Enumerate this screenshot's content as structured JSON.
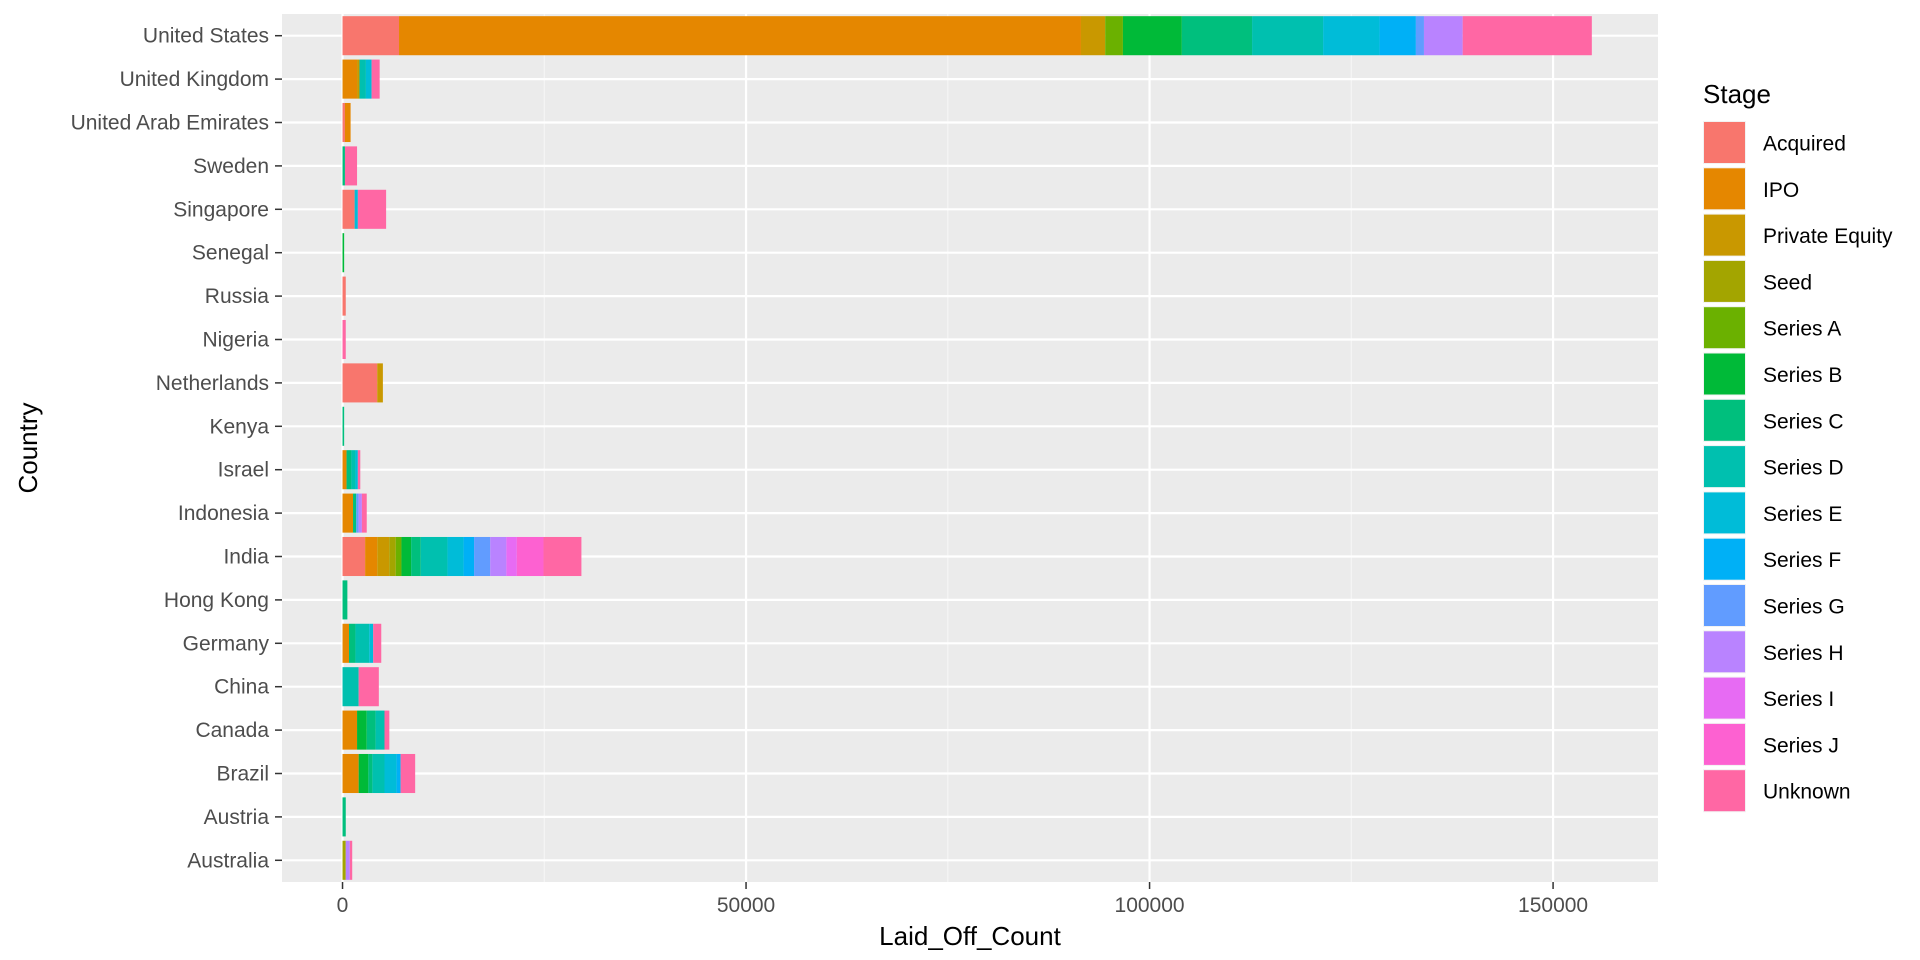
{
  "chart_data": {
    "type": "bar",
    "orientation": "horizontal",
    "stacked": true,
    "title": "",
    "xlabel": "Laid_Off_Count",
    "ylabel": "Country",
    "xlim": [
      -7500,
      163000
    ],
    "x_ticks": [
      0,
      50000,
      100000,
      150000
    ],
    "x_tick_labels": [
      "0",
      "50000",
      "100000",
      "150000"
    ],
    "grid": true,
    "legend_position": "right",
    "legend_title": "Stage",
    "categories": [
      "United States",
      "United Kingdom",
      "United Arab Emirates",
      "Sweden",
      "Singapore",
      "Senegal",
      "Russia",
      "Nigeria",
      "Netherlands",
      "Kenya",
      "Israel",
      "Indonesia",
      "India",
      "Hong Kong",
      "Germany",
      "China",
      "Canada",
      "Brazil",
      "Austria",
      "Australia"
    ],
    "series": [
      {
        "name": "Acquired",
        "color": "#F8766D",
        "values": [
          7000,
          0,
          300,
          0,
          1500,
          0,
          400,
          0,
          4300,
          0,
          0,
          0,
          2800,
          0,
          0,
          0,
          0,
          0,
          0,
          0
        ]
      },
      {
        "name": "IPO",
        "color": "#E58700",
        "values": [
          84500,
          1800,
          700,
          0,
          0,
          0,
          0,
          0,
          0,
          0,
          500,
          1300,
          1500,
          0,
          800,
          0,
          1800,
          2000,
          0,
          0
        ]
      },
      {
        "name": "Private Equity",
        "color": "#C99800",
        "values": [
          3000,
          300,
          0,
          0,
          0,
          0,
          0,
          0,
          700,
          0,
          0,
          0,
          1500,
          0,
          0,
          0,
          0,
          0,
          0,
          0
        ]
      },
      {
        "name": "Seed",
        "color": "#A3A500",
        "values": [
          0,
          0,
          0,
          0,
          0,
          0,
          0,
          0,
          0,
          0,
          0,
          0,
          800,
          0,
          0,
          0,
          0,
          0,
          0,
          400
        ]
      },
      {
        "name": "Series A",
        "color": "#6BB100",
        "values": [
          2200,
          0,
          0,
          0,
          0,
          0,
          0,
          0,
          0,
          0,
          0,
          0,
          700,
          0,
          0,
          0,
          0,
          0,
          0,
          0
        ]
      },
      {
        "name": "Series B",
        "color": "#00BA38",
        "values": [
          7300,
          0,
          0,
          0,
          0,
          200,
          0,
          0,
          0,
          0,
          0,
          0,
          1200,
          0,
          0,
          0,
          1200,
          1200,
          0,
          0
        ]
      },
      {
        "name": "Series C",
        "color": "#00BF7D",
        "values": [
          8700,
          0,
          0,
          300,
          0,
          0,
          0,
          0,
          0,
          200,
          600,
          400,
          1200,
          600,
          800,
          0,
          1100,
          500,
          400,
          0
        ]
      },
      {
        "name": "Series D",
        "color": "#00C0AF",
        "values": [
          8800,
          800,
          0,
          0,
          0,
          0,
          0,
          0,
          0,
          0,
          500,
          0,
          3300,
          0,
          1700,
          2000,
          1100,
          1500,
          0,
          0
        ]
      },
      {
        "name": "Series E",
        "color": "#00BCD8",
        "values": [
          7000,
          700,
          0,
          0,
          400,
          0,
          0,
          0,
          0,
          0,
          300,
          0,
          2000,
          0,
          500,
          0,
          0,
          1500,
          0,
          0
        ]
      },
      {
        "name": "Series F",
        "color": "#00B0F6",
        "values": [
          4500,
          0,
          0,
          0,
          0,
          0,
          0,
          0,
          0,
          0,
          0,
          0,
          1300,
          0,
          0,
          0,
          0,
          500,
          0,
          0
        ]
      },
      {
        "name": "Series G",
        "color": "#619CFF",
        "values": [
          1000,
          0,
          0,
          0,
          0,
          0,
          0,
          0,
          0,
          0,
          0,
          300,
          2000,
          0,
          0,
          0,
          0,
          0,
          0,
          0
        ]
      },
      {
        "name": "Series H",
        "color": "#B983FF",
        "values": [
          4800,
          0,
          0,
          0,
          0,
          0,
          0,
          0,
          0,
          0,
          0,
          400,
          2000,
          0,
          0,
          0,
          0,
          0,
          0,
          500
        ]
      },
      {
        "name": "Series I",
        "color": "#E76BF3",
        "values": [
          0,
          0,
          0,
          0,
          0,
          0,
          0,
          0,
          0,
          0,
          0,
          0,
          1300,
          0,
          0,
          0,
          0,
          0,
          0,
          0
        ]
      },
      {
        "name": "Series J",
        "color": "#FD61D1",
        "values": [
          0,
          0,
          0,
          0,
          0,
          0,
          0,
          0,
          0,
          0,
          0,
          0,
          3300,
          0,
          0,
          0,
          0,
          0,
          0,
          0
        ]
      },
      {
        "name": "Unknown",
        "color": "#FF67A4",
        "values": [
          16000,
          1000,
          0,
          1500,
          3500,
          0,
          0,
          400,
          0,
          0,
          300,
          600,
          4700,
          0,
          1000,
          2500,
          600,
          1800,
          0,
          300
        ]
      }
    ]
  }
}
